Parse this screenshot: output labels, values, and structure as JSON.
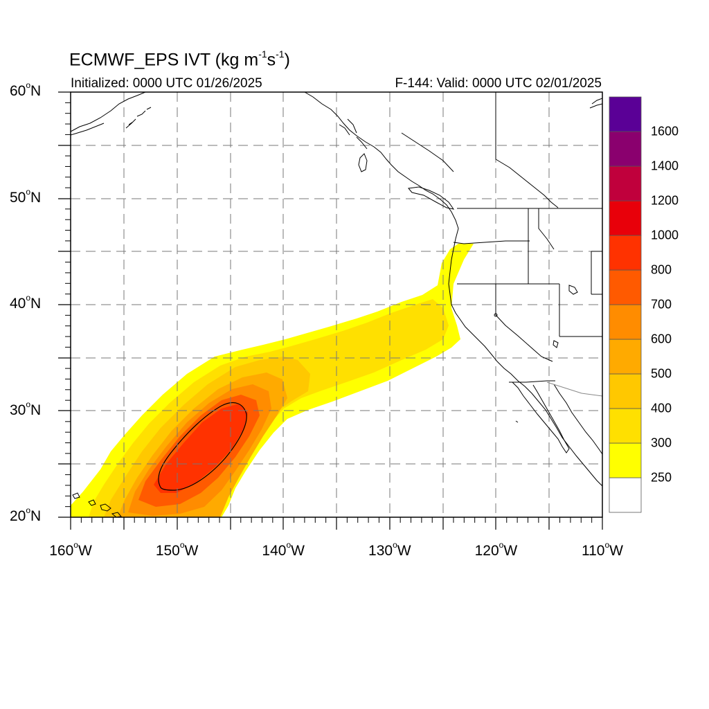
{
  "title": {
    "prefix": "ECMWF_EPS IVT (kg m",
    "sup1": "-1",
    "mid": "s",
    "sup2": "-1",
    "suffix": ")"
  },
  "subtitle_left": "Initialized: 0000 UTC 01/26/2025",
  "subtitle_right": "F-144: Valid: 0000 UTC 02/01/2025",
  "latitude_labels": [
    {
      "value": "60",
      "hemi": "N",
      "lat": 60
    },
    {
      "value": "50",
      "hemi": "N",
      "lat": 50
    },
    {
      "value": "40",
      "hemi": "N",
      "lat": 40
    },
    {
      "value": "30",
      "hemi": "N",
      "lat": 30
    },
    {
      "value": "20",
      "hemi": "N",
      "lat": 20
    }
  ],
  "longitude_labels": [
    {
      "value": "160",
      "hemi": "W",
      "lon": -160
    },
    {
      "value": "150",
      "hemi": "W",
      "lon": -150
    },
    {
      "value": "140",
      "hemi": "W",
      "lon": -140
    },
    {
      "value": "130",
      "hemi": "W",
      "lon": -130
    },
    {
      "value": "120",
      "hemi": "W",
      "lon": -120
    },
    {
      "value": "110",
      "hemi": "W",
      "lon": -110
    }
  ],
  "degree_symbol": "o",
  "colorbar": {
    "colors": [
      "#ffffff",
      "#ffff00",
      "#ffe000",
      "#ffc800",
      "#ffaa00",
      "#ff8c00",
      "#ff5a00",
      "#ff3200",
      "#e8000a",
      "#c0003c",
      "#8a006e",
      "#5a0096"
    ],
    "labels": [
      "250",
      "300",
      "400",
      "500",
      "600",
      "700",
      "800",
      "1000",
      "1200",
      "1400",
      "1600"
    ]
  }
}
